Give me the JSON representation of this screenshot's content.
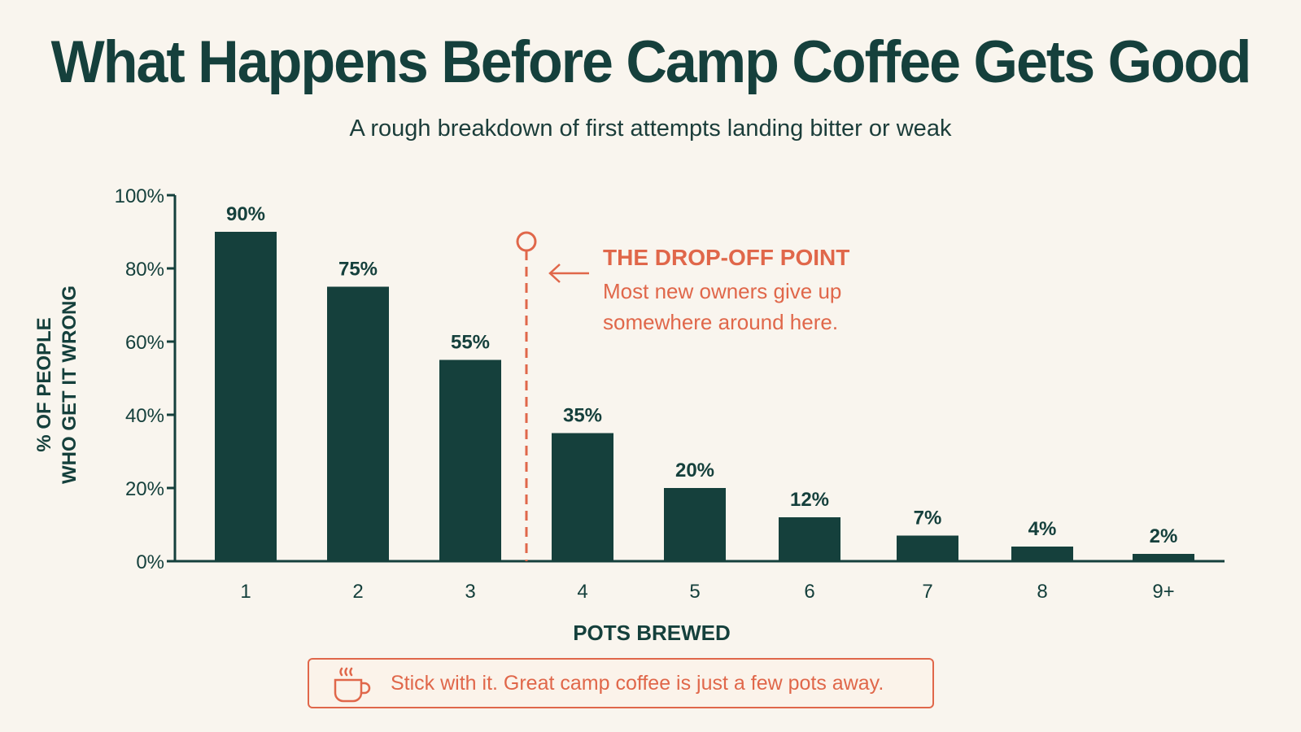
{
  "colors": {
    "bar": "#15403c",
    "accent": "#e0674a",
    "background": "#f9f5ee"
  },
  "callout": {
    "text": "Stick with it. Great camp coffee is just a few pots away.",
    "icon": "coffee-cup-icon"
  },
  "chart_data": {
    "type": "bar",
    "title": "What Happens Before Camp Coffee Gets Good",
    "subtitle": "A rough breakdown of first attempts landing bitter or weak",
    "xlabel": "POTS BREWED",
    "ylabel": [
      "% OF PEOPLE",
      "WHO GET IT WRONG"
    ],
    "categories": [
      "1",
      "2",
      "3",
      "4",
      "5",
      "6",
      "7",
      "8",
      "9+"
    ],
    "values": [
      90,
      75,
      55,
      35,
      20,
      12,
      7,
      4,
      2
    ],
    "value_labels": [
      "90%",
      "75%",
      "55%",
      "35%",
      "20%",
      "12%",
      "7%",
      "4%",
      "2%"
    ],
    "ylim": [
      0,
      100
    ],
    "yticks": [
      0,
      20,
      40,
      60,
      80,
      100
    ],
    "ytick_labels": [
      "0%",
      "20%",
      "40%",
      "60%",
      "80%",
      "100%"
    ],
    "grid": false,
    "marker": {
      "between": [
        "3",
        "4"
      ],
      "heading": "THE DROP-OFF POINT",
      "lines": [
        "Most new owners give up",
        "somewhere around here."
      ]
    }
  }
}
